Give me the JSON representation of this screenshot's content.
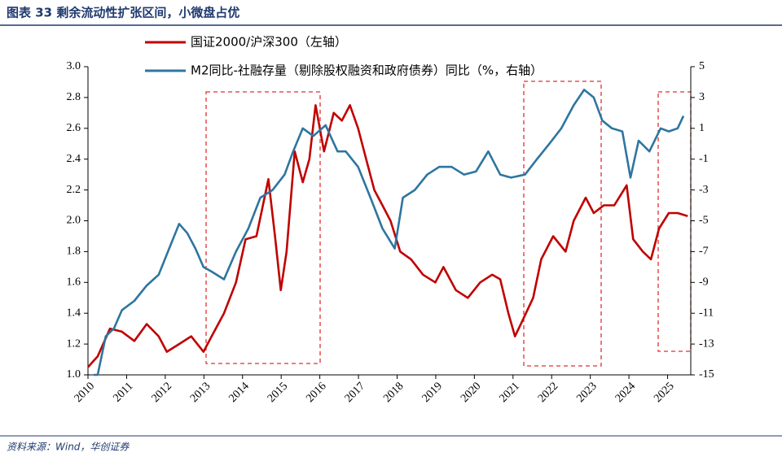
{
  "chart_data": {
    "type": "line",
    "title": "图表 33  剩余流动性扩张区间，小微盘占优",
    "source": "资料来源：Wind，华创证券",
    "xlim": [
      2010,
      2025.6
    ],
    "xticks": [
      2010,
      2011,
      2012,
      2013,
      2014,
      2015,
      2016,
      2017,
      2018,
      2019,
      2020,
      2021,
      2022,
      2023,
      2024,
      2025
    ],
    "ylim": [
      1.0,
      3.0
    ],
    "yticks": [
      {
        "value": 1.0,
        "label": "1.0"
      },
      1.2,
      1.4,
      1.6,
      1.8,
      {
        "value": 2.0,
        "label": "2.0"
      },
      2.2,
      2.4,
      2.6,
      2.8,
      {
        "value": 3.0,
        "label": "3.0"
      }
    ],
    "y2lim": [
      -15,
      5
    ],
    "y2ticks": [
      -15,
      -13,
      -11,
      -9,
      -7,
      -5,
      -3,
      -1,
      1,
      3,
      5
    ],
    "series": [
      {
        "name": "国证2000/沪深300（左轴）",
        "color": "#c00000",
        "x": [
          2010.0,
          2010.25,
          2010.57,
          2010.88,
          2011.2,
          2011.52,
          2011.83,
          2012.04,
          2012.36,
          2012.67,
          2012.99,
          2013.2,
          2013.52,
          2013.83,
          2014.08,
          2014.36,
          2014.67,
          2014.84,
          2014.99,
          2015.14,
          2015.35,
          2015.56,
          2015.73,
          2015.89,
          2016.11,
          2016.36,
          2016.57,
          2016.78,
          2016.99,
          2017.2,
          2017.41,
          2017.62,
          2017.83,
          2018.08,
          2018.36,
          2018.67,
          2018.99,
          2019.2,
          2019.52,
          2019.83,
          2020.15,
          2020.46,
          2020.67,
          2020.88,
          2021.05,
          2021.24,
          2021.52,
          2021.73,
          2022.04,
          2022.36,
          2022.57,
          2022.88,
          2023.09,
          2023.35,
          2023.62,
          2023.94,
          2024.11,
          2024.36,
          2024.57,
          2024.78,
          2025.03,
          2025.26,
          2025.52
        ],
        "values": [
          1.05,
          1.12,
          1.3,
          1.28,
          1.22,
          1.33,
          1.25,
          1.15,
          1.2,
          1.25,
          1.15,
          1.25,
          1.4,
          1.6,
          1.88,
          1.9,
          2.27,
          1.9,
          1.55,
          1.8,
          2.45,
          2.25,
          2.4,
          2.75,
          2.45,
          2.7,
          2.65,
          2.75,
          2.6,
          2.4,
          2.2,
          2.1,
          2.0,
          1.8,
          1.75,
          1.65,
          1.6,
          1.7,
          1.55,
          1.5,
          1.6,
          1.65,
          1.62,
          1.4,
          1.25,
          1.35,
          1.5,
          1.75,
          1.9,
          1.8,
          2.0,
          2.15,
          2.05,
          2.1,
          2.1,
          2.23,
          1.88,
          1.8,
          1.75,
          1.95,
          2.05,
          2.05,
          2.03
        ]
      },
      {
        "name": "M2同比-社融存量（剔除股权融资和政府债券）同比（%，右轴）",
        "color": "#2e75a0",
        "axis": "y2",
        "x": [
          2010.15,
          2010.25,
          2010.46,
          2010.67,
          2010.88,
          2011.2,
          2011.52,
          2011.83,
          2012.15,
          2012.36,
          2012.57,
          2012.78,
          2012.99,
          2013.2,
          2013.52,
          2013.83,
          2014.15,
          2014.46,
          2014.78,
          2015.09,
          2015.31,
          2015.56,
          2015.83,
          2016.15,
          2016.46,
          2016.67,
          2016.99,
          2017.31,
          2017.62,
          2017.94,
          2018.15,
          2018.46,
          2018.78,
          2019.09,
          2019.41,
          2019.73,
          2020.04,
          2020.36,
          2020.67,
          2020.95,
          2021.31,
          2021.62,
          2021.94,
          2022.25,
          2022.57,
          2022.84,
          2023.09,
          2023.31,
          2023.56,
          2023.83,
          2024.04,
          2024.25,
          2024.53,
          2024.82,
          2025.03,
          2025.26,
          2025.41
        ],
        "values": [
          -15,
          -15,
          -12.5,
          -12,
          -10.8,
          -10.2,
          -9.2,
          -8.5,
          -6.5,
          -5.2,
          -5.8,
          -6.8,
          -8,
          -8.3,
          -8.8,
          -7,
          -5.5,
          -3.5,
          -3,
          -2,
          -0.5,
          1,
          0.5,
          1.2,
          -0.5,
          -0.5,
          -1.5,
          -3.5,
          -5.5,
          -6.8,
          -3.5,
          -3,
          -2,
          -1.5,
          -1.5,
          -2,
          -1.8,
          -0.5,
          -2,
          -2.2,
          -2,
          -1,
          0,
          1,
          2.5,
          3.5,
          3,
          1.5,
          1,
          0.8,
          -2.2,
          0.2,
          -0.5,
          1,
          0.8,
          1,
          1.8
        ]
      }
    ]
  }
}
